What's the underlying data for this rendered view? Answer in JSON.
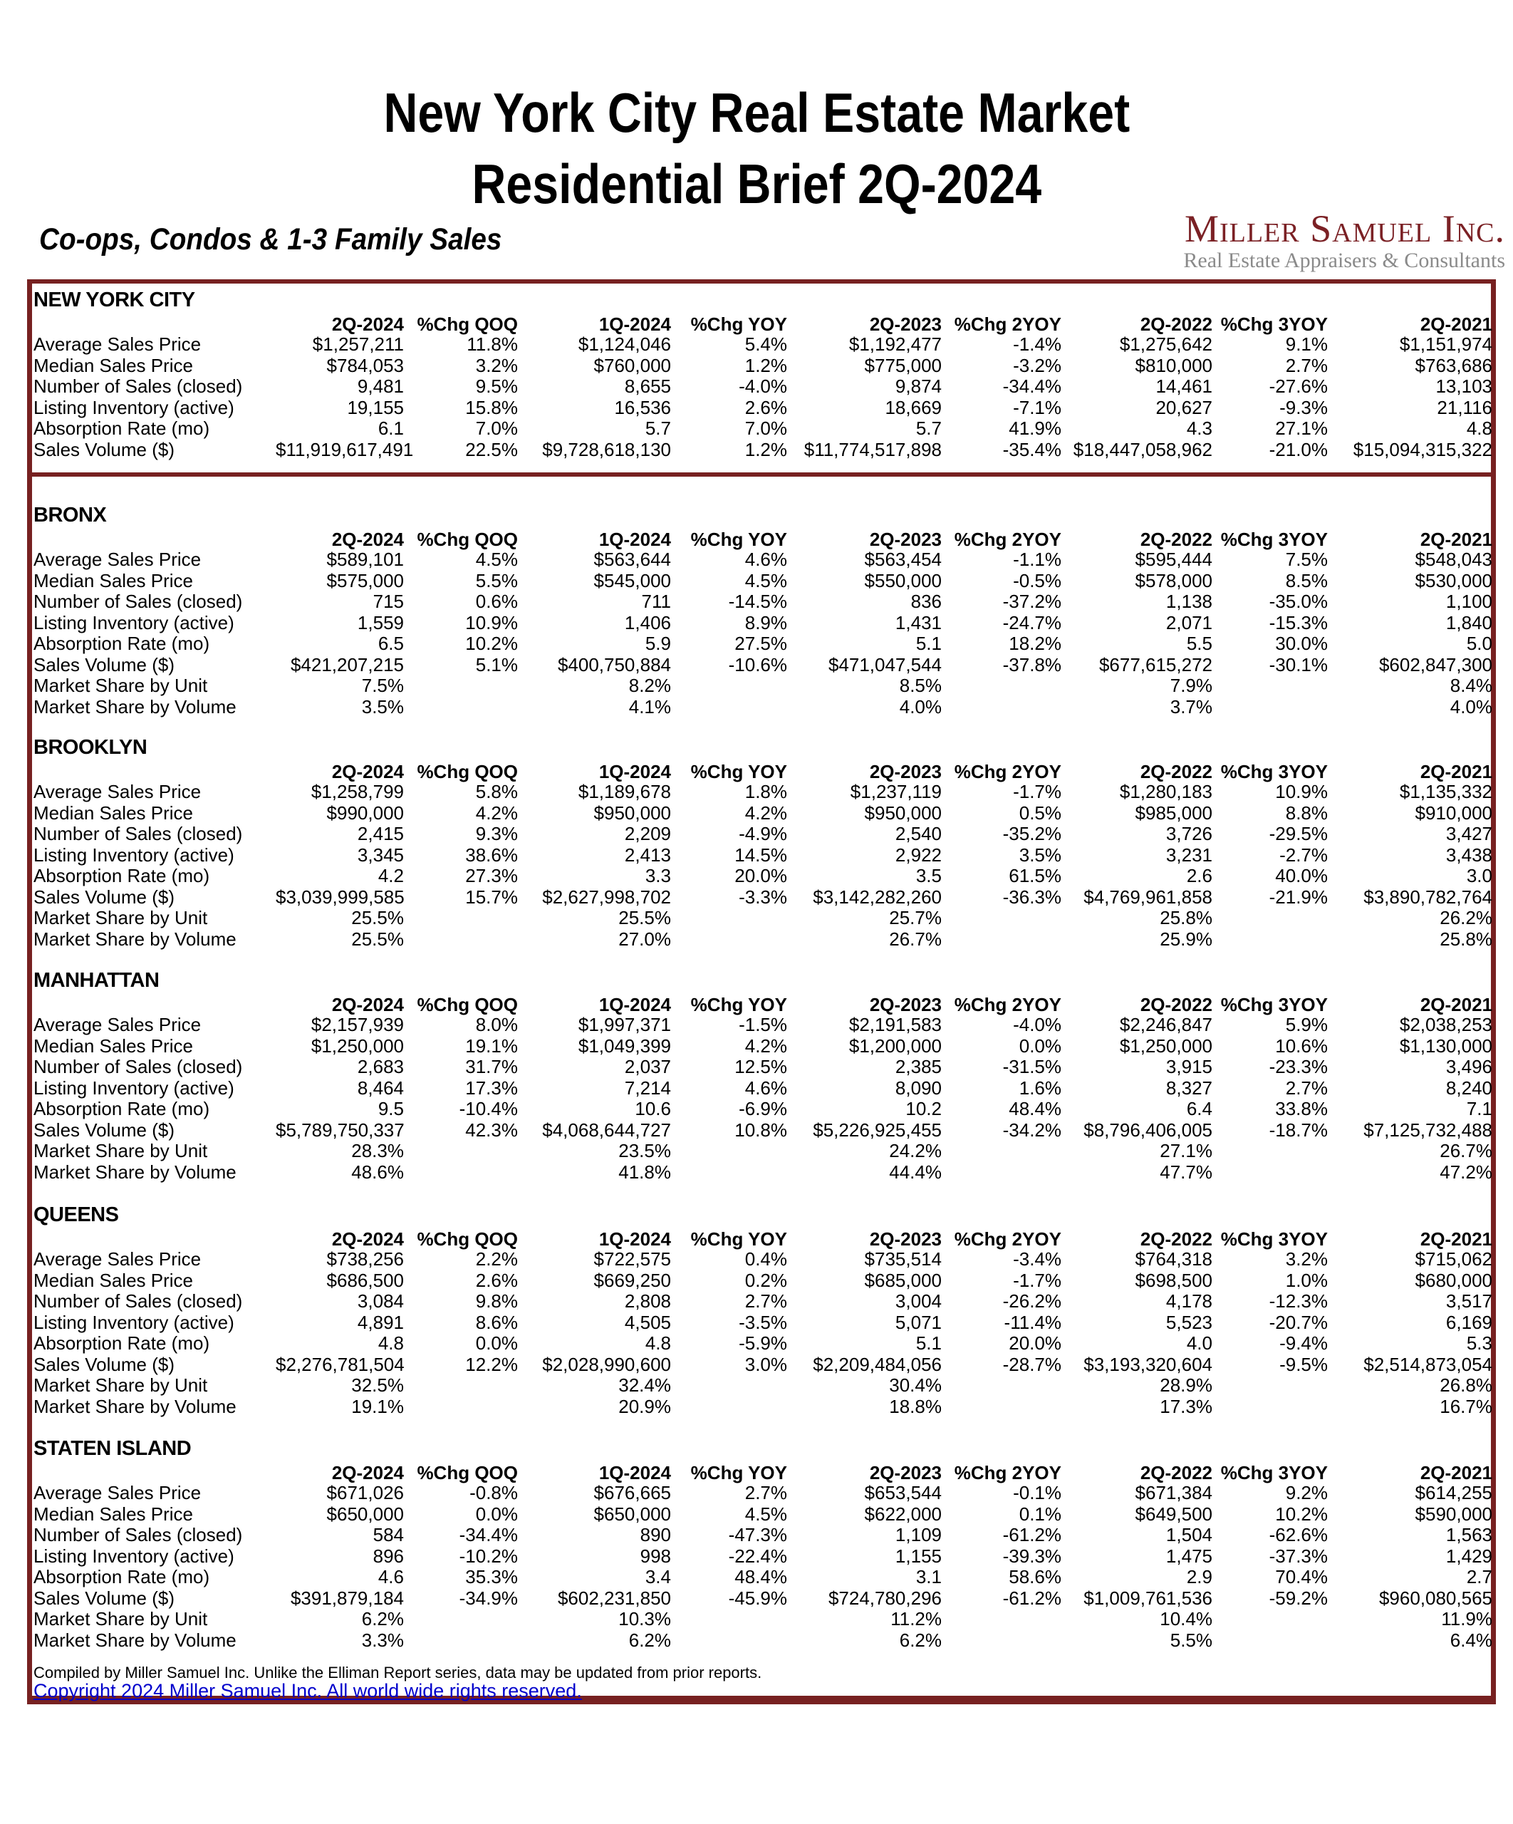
{
  "page": {
    "title_line1": "New York City Real Estate Market",
    "title_line2": "Residential Brief 2Q-2024",
    "subtitle": "Co-ops, Condos & 1-3 Family Sales",
    "logo": {
      "name": "Miller Samuel Inc.",
      "tagline": "Real Estate Appraisers & Consultants"
    }
  },
  "colors": {
    "accent_maroon": "#772121",
    "logo_maroon": "#7B2125",
    "link_blue": "#0000CC",
    "tagline_gray": "#8A8A8A"
  },
  "table": {
    "columns": [
      "2Q-2024",
      "%Chg QOQ",
      "1Q-2024",
      "%Chg YOY",
      "2Q-2023",
      "%Chg 2YOY",
      "2Q-2022",
      "%Chg 3YOY",
      "2Q-2021"
    ],
    "sections": [
      {
        "name": "NEW YORK CITY",
        "rows": [
          {
            "label": "Average Sales Price",
            "values": [
              "$1,257,211",
              "11.8%",
              "$1,124,046",
              "5.4%",
              "$1,192,477",
              "-1.4%",
              "$1,275,642",
              "9.1%",
              "$1,151,974"
            ]
          },
          {
            "label": "Median Sales Price",
            "values": [
              "$784,053",
              "3.2%",
              "$760,000",
              "1.2%",
              "$775,000",
              "-3.2%",
              "$810,000",
              "2.7%",
              "$763,686"
            ]
          },
          {
            "label": "Number of Sales (closed)",
            "values": [
              "9,481",
              "9.5%",
              "8,655",
              "-4.0%",
              "9,874",
              "-34.4%",
              "14,461",
              "-27.6%",
              "13,103"
            ]
          },
          {
            "label": "Listing Inventory (active)",
            "values": [
              "19,155",
              "15.8%",
              "16,536",
              "2.6%",
              "18,669",
              "-7.1%",
              "20,627",
              "-9.3%",
              "21,116"
            ]
          },
          {
            "label": "Absorption Rate (mo)",
            "values": [
              "6.1",
              "7.0%",
              "5.7",
              "7.0%",
              "5.7",
              "41.9%",
              "4.3",
              "27.1%",
              "4.8"
            ]
          },
          {
            "label": "Sales Volume ($)",
            "values": [
              "$11,919,617,491",
              "22.5%",
              "$9,728,618,130",
              "1.2%",
              "$11,774,517,898",
              "-35.4%",
              "$18,447,058,962",
              "-21.0%",
              "$15,094,315,322"
            ]
          }
        ]
      },
      {
        "name": "BRONX",
        "rows": [
          {
            "label": "Average Sales Price",
            "values": [
              "$589,101",
              "4.5%",
              "$563,644",
              "4.6%",
              "$563,454",
              "-1.1%",
              "$595,444",
              "7.5%",
              "$548,043"
            ]
          },
          {
            "label": "Median Sales Price",
            "values": [
              "$575,000",
              "5.5%",
              "$545,000",
              "4.5%",
              "$550,000",
              "-0.5%",
              "$578,000",
              "8.5%",
              "$530,000"
            ]
          },
          {
            "label": "Number of Sales (closed)",
            "values": [
              "715",
              "0.6%",
              "711",
              "-14.5%",
              "836",
              "-37.2%",
              "1,138",
              "-35.0%",
              "1,100"
            ]
          },
          {
            "label": "Listing Inventory (active)",
            "values": [
              "1,559",
              "10.9%",
              "1,406",
              "8.9%",
              "1,431",
              "-24.7%",
              "2,071",
              "-15.3%",
              "1,840"
            ]
          },
          {
            "label": "Absorption Rate (mo)",
            "values": [
              "6.5",
              "10.2%",
              "5.9",
              "27.5%",
              "5.1",
              "18.2%",
              "5.5",
              "30.0%",
              "5.0"
            ]
          },
          {
            "label": "Sales Volume ($)",
            "values": [
              "$421,207,215",
              "5.1%",
              "$400,750,884",
              "-10.6%",
              "$471,047,544",
              "-37.8%",
              "$677,615,272",
              "-30.1%",
              "$602,847,300"
            ]
          },
          {
            "label": "Market Share by Unit",
            "values": [
              "7.5%",
              "",
              "8.2%",
              "",
              "8.5%",
              "",
              "7.9%",
              "",
              "8.4%"
            ]
          },
          {
            "label": "Market Share by Volume",
            "values": [
              "3.5%",
              "",
              "4.1%",
              "",
              "4.0%",
              "",
              "3.7%",
              "",
              "4.0%"
            ]
          }
        ]
      },
      {
        "name": "BROOKLYN",
        "rows": [
          {
            "label": "Average Sales Price",
            "values": [
              "$1,258,799",
              "5.8%",
              "$1,189,678",
              "1.8%",
              "$1,237,119",
              "-1.7%",
              "$1,280,183",
              "10.9%",
              "$1,135,332"
            ]
          },
          {
            "label": "Median Sales Price",
            "values": [
              "$990,000",
              "4.2%",
              "$950,000",
              "4.2%",
              "$950,000",
              "0.5%",
              "$985,000",
              "8.8%",
              "$910,000"
            ]
          },
          {
            "label": "Number of Sales (closed)",
            "values": [
              "2,415",
              "9.3%",
              "2,209",
              "-4.9%",
              "2,540",
              "-35.2%",
              "3,726",
              "-29.5%",
              "3,427"
            ]
          },
          {
            "label": "Listing Inventory (active)",
            "values": [
              "3,345",
              "38.6%",
              "2,413",
              "14.5%",
              "2,922",
              "3.5%",
              "3,231",
              "-2.7%",
              "3,438"
            ]
          },
          {
            "label": "Absorption Rate (mo)",
            "values": [
              "4.2",
              "27.3%",
              "3.3",
              "20.0%",
              "3.5",
              "61.5%",
              "2.6",
              "40.0%",
              "3.0"
            ]
          },
          {
            "label": "Sales Volume ($)",
            "values": [
              "$3,039,999,585",
              "15.7%",
              "$2,627,998,702",
              "-3.3%",
              "$3,142,282,260",
              "-36.3%",
              "$4,769,961,858",
              "-21.9%",
              "$3,890,782,764"
            ]
          },
          {
            "label": "Market Share by Unit",
            "values": [
              "25.5%",
              "",
              "25.5%",
              "",
              "25.7%",
              "",
              "25.8%",
              "",
              "26.2%"
            ]
          },
          {
            "label": "Market Share by Volume",
            "values": [
              "25.5%",
              "",
              "27.0%",
              "",
              "26.7%",
              "",
              "25.9%",
              "",
              "25.8%"
            ]
          }
        ]
      },
      {
        "name": "MANHATTAN",
        "rows": [
          {
            "label": "Average Sales Price",
            "values": [
              "$2,157,939",
              "8.0%",
              "$1,997,371",
              "-1.5%",
              "$2,191,583",
              "-4.0%",
              "$2,246,847",
              "5.9%",
              "$2,038,253"
            ]
          },
          {
            "label": "Median Sales Price",
            "values": [
              "$1,250,000",
              "19.1%",
              "$1,049,399",
              "4.2%",
              "$1,200,000",
              "0.0%",
              "$1,250,000",
              "10.6%",
              "$1,130,000"
            ]
          },
          {
            "label": "Number of Sales (closed)",
            "values": [
              "2,683",
              "31.7%",
              "2,037",
              "12.5%",
              "2,385",
              "-31.5%",
              "3,915",
              "-23.3%",
              "3,496"
            ]
          },
          {
            "label": "Listing Inventory (active)",
            "values": [
              "8,464",
              "17.3%",
              "7,214",
              "4.6%",
              "8,090",
              "1.6%",
              "8,327",
              "2.7%",
              "8,240"
            ]
          },
          {
            "label": "Absorption Rate (mo)",
            "values": [
              "9.5",
              "-10.4%",
              "10.6",
              "-6.9%",
              "10.2",
              "48.4%",
              "6.4",
              "33.8%",
              "7.1"
            ]
          },
          {
            "label": "Sales Volume ($)",
            "values": [
              "$5,789,750,337",
              "42.3%",
              "$4,068,644,727",
              "10.8%",
              "$5,226,925,455",
              "-34.2%",
              "$8,796,406,005",
              "-18.7%",
              "$7,125,732,488"
            ]
          },
          {
            "label": "Market Share by Unit",
            "values": [
              "28.3%",
              "",
              "23.5%",
              "",
              "24.2%",
              "",
              "27.1%",
              "",
              "26.7%"
            ]
          },
          {
            "label": "Market Share by Volume",
            "values": [
              "48.6%",
              "",
              "41.8%",
              "",
              "44.4%",
              "",
              "47.7%",
              "",
              "47.2%"
            ]
          }
        ]
      },
      {
        "name": "QUEENS",
        "rows": [
          {
            "label": "Average Sales Price",
            "values": [
              "$738,256",
              "2.2%",
              "$722,575",
              "0.4%",
              "$735,514",
              "-3.4%",
              "$764,318",
              "3.2%",
              "$715,062"
            ]
          },
          {
            "label": "Median Sales Price",
            "values": [
              "$686,500",
              "2.6%",
              "$669,250",
              "0.2%",
              "$685,000",
              "-1.7%",
              "$698,500",
              "1.0%",
              "$680,000"
            ]
          },
          {
            "label": "Number of Sales (closed)",
            "values": [
              "3,084",
              "9.8%",
              "2,808",
              "2.7%",
              "3,004",
              "-26.2%",
              "4,178",
              "-12.3%",
              "3,517"
            ]
          },
          {
            "label": "Listing Inventory (active)",
            "values": [
              "4,891",
              "8.6%",
              "4,505",
              "-3.5%",
              "5,071",
              "-11.4%",
              "5,523",
              "-20.7%",
              "6,169"
            ]
          },
          {
            "label": "Absorption Rate (mo)",
            "values": [
              "4.8",
              "0.0%",
              "4.8",
              "-5.9%",
              "5.1",
              "20.0%",
              "4.0",
              "-9.4%",
              "5.3"
            ]
          },
          {
            "label": "Sales Volume ($)",
            "values": [
              "$2,276,781,504",
              "12.2%",
              "$2,028,990,600",
              "3.0%",
              "$2,209,484,056",
              "-28.7%",
              "$3,193,320,604",
              "-9.5%",
              "$2,514,873,054"
            ]
          },
          {
            "label": "Market Share by Unit",
            "values": [
              "32.5%",
              "",
              "32.4%",
              "",
              "30.4%",
              "",
              "28.9%",
              "",
              "26.8%"
            ]
          },
          {
            "label": "Market Share by Volume",
            "values": [
              "19.1%",
              "",
              "20.9%",
              "",
              "18.8%",
              "",
              "17.3%",
              "",
              "16.7%"
            ]
          }
        ]
      },
      {
        "name": "STATEN ISLAND",
        "rows": [
          {
            "label": "Average Sales Price",
            "values": [
              "$671,026",
              "-0.8%",
              "$676,665",
              "2.7%",
              "$653,544",
              "-0.1%",
              "$671,384",
              "9.2%",
              "$614,255"
            ]
          },
          {
            "label": "Median Sales Price",
            "values": [
              "$650,000",
              "0.0%",
              "$650,000",
              "4.5%",
              "$622,000",
              "0.1%",
              "$649,500",
              "10.2%",
              "$590,000"
            ]
          },
          {
            "label": "Number of Sales (closed)",
            "values": [
              "584",
              "-34.4%",
              "890",
              "-47.3%",
              "1,109",
              "-61.2%",
              "1,504",
              "-62.6%",
              "1,563"
            ]
          },
          {
            "label": "Listing Inventory (active)",
            "values": [
              "896",
              "-10.2%",
              "998",
              "-22.4%",
              "1,155",
              "-39.3%",
              "1,475",
              "-37.3%",
              "1,429"
            ]
          },
          {
            "label": "Absorption Rate (mo)",
            "values": [
              "4.6",
              "35.3%",
              "3.4",
              "48.4%",
              "3.1",
              "58.6%",
              "2.9",
              "70.4%",
              "2.7"
            ]
          },
          {
            "label": "Sales Volume ($)",
            "values": [
              "$391,879,184",
              "-34.9%",
              "$602,231,850",
              "-45.9%",
              "$724,780,296",
              "-61.2%",
              "$1,009,761,536",
              "-59.2%",
              "$960,080,565"
            ]
          },
          {
            "label": "Market Share by Unit",
            "values": [
              "6.2%",
              "",
              "10.3%",
              "",
              "11.2%",
              "",
              "10.4%",
              "",
              "11.9%"
            ]
          },
          {
            "label": "Market Share by Volume",
            "values": [
              "3.3%",
              "",
              "6.2%",
              "",
              "6.2%",
              "",
              "5.5%",
              "",
              "6.4%"
            ]
          }
        ]
      }
    ]
  },
  "footer": {
    "note": "Compiled by Miller Samuel Inc. Unlike the Elliman Report series, data may be updated from prior reports.",
    "copyright": "Copyright 2024 Miller Samuel Inc. All world wide rights reserved."
  }
}
